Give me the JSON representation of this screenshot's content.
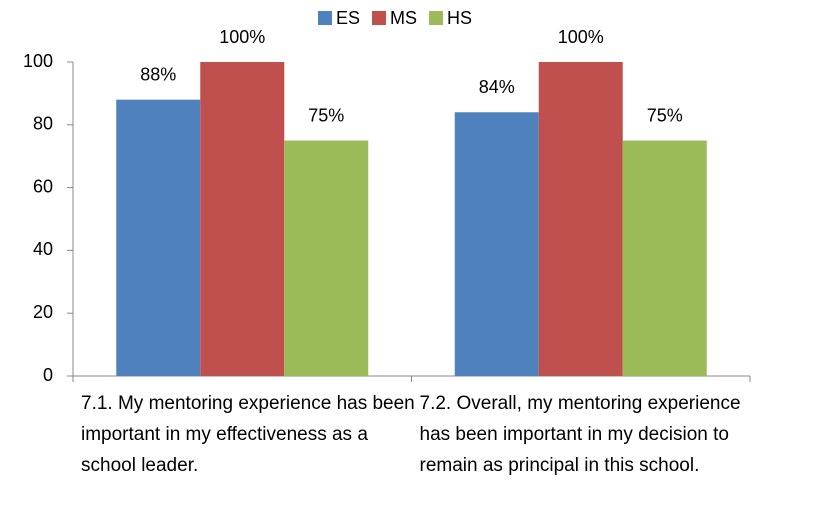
{
  "chart_data": {
    "type": "bar",
    "categories": [
      "7.1. My mentoring experience has been important in my effectiveness as a school leader.",
      "7.2. Overall, my mentoring experience has been important in my decision to remain as principal in this school."
    ],
    "series": [
      {
        "name": "ES",
        "color": "#4f81bd",
        "values": [
          88,
          84
        ],
        "value_labels": [
          "88%",
          "84%"
        ]
      },
      {
        "name": "MS",
        "color": "#c0504d",
        "values": [
          100,
          100
        ],
        "value_labels": [
          "100%",
          "100%"
        ]
      },
      {
        "name": "HS",
        "color": "#9bbb59",
        "values": [
          75,
          75
        ],
        "value_labels": [
          "75%",
          "75%"
        ]
      }
    ],
    "ylim": [
      0,
      100
    ],
    "yticks": [
      0,
      20,
      40,
      60,
      80,
      100
    ],
    "grid": false,
    "legend": "top"
  }
}
